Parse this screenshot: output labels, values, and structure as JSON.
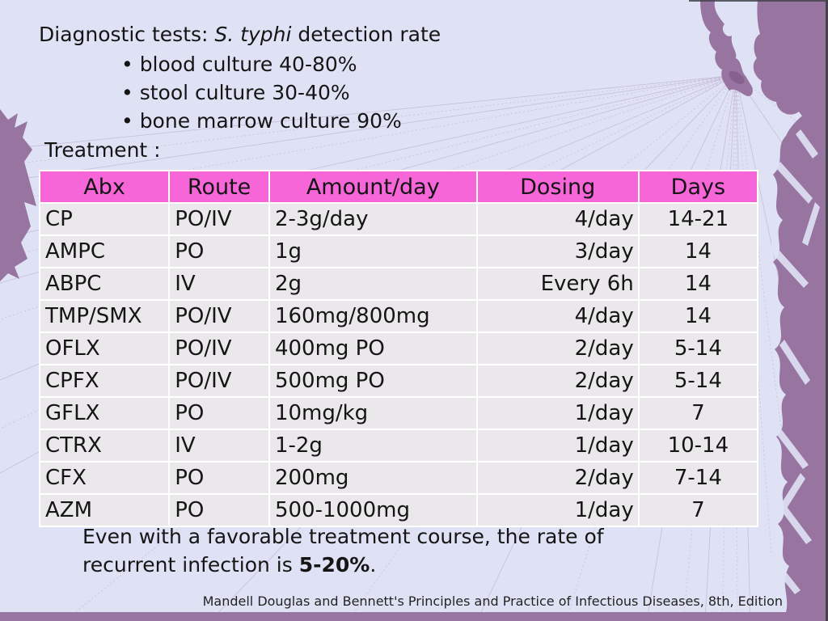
{
  "slide": {
    "title": {
      "prefix": "Diagnostic tests: ",
      "italic": "S. typhi",
      "suffix": " detection rate"
    },
    "bullet_char": "•",
    "bullets": [
      "blood culture 40-80%",
      "stool culture 30-40%",
      "bone marrow culture 90%"
    ],
    "treatment_label": "Treatment :",
    "table": {
      "headers": [
        "Abx",
        "Route",
        "Amount/day",
        "Dosing",
        "Days"
      ],
      "rows": [
        [
          "CP",
          "PO/IV",
          "2-3g/day",
          "4/day",
          "14-21"
        ],
        [
          "AMPC",
          "PO",
          "1g",
          "3/day",
          "14"
        ],
        [
          "ABPC",
          "IV",
          "2g",
          "Every 6h",
          "14"
        ],
        [
          "TMP/SMX",
          "PO/IV",
          "160mg/800mg",
          "4/day",
          "14"
        ],
        [
          "OFLX",
          "PO/IV",
          "400mg PO",
          "2/day",
          "5-14"
        ],
        [
          "CPFX",
          "PO/IV",
          "500mg PO",
          "2/day",
          "5-14"
        ],
        [
          "GFLX",
          "PO",
          "10mg/kg",
          "1/day",
          "7"
        ],
        [
          "CTRX",
          "IV",
          "1-2g",
          "1/day",
          "10-14"
        ],
        [
          "CFX",
          "PO",
          "200mg",
          "2/day",
          "7-14"
        ],
        [
          "AZM",
          "PO",
          "500-1000mg",
          "1/day",
          "7"
        ]
      ]
    },
    "note": {
      "line1": "Even with a favorable treatment course, the rate of",
      "line2_prefix": "recurrent infection is ",
      "line2_bold": "5-20%",
      "line2_suffix": "."
    },
    "citation": "Mandell Douglas and Bennett's Principles and Practice of Infectious Diseases, 8th, Edition",
    "colors": {
      "background": "#DFE2F5",
      "header_bg": "#F666D9",
      "row_bg": "#EAE8EA",
      "grid": "#FFFFFF",
      "text": "#151515",
      "decor_purple": "#9874A0",
      "decor_line": "#B7A6C6",
      "dark_edge": "#44434B"
    }
  }
}
